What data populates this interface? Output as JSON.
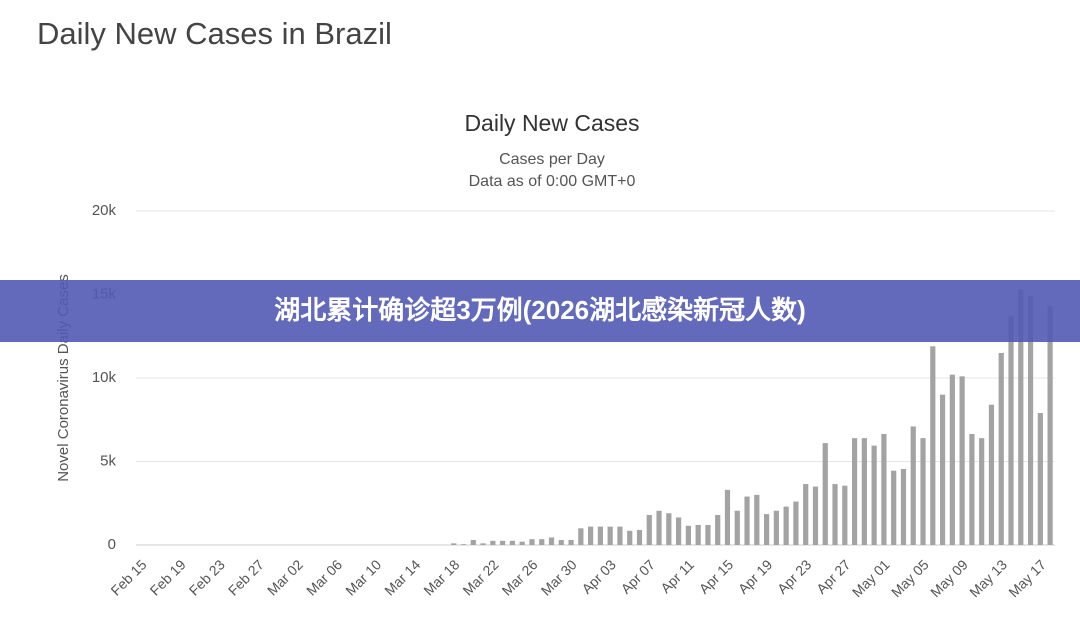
{
  "page_title": "Daily New Cases in Brazil",
  "banner": "湖北累计确诊超3万例(2026湖北感染新冠人数)",
  "chart_data": {
    "type": "bar",
    "title": "Daily New Cases",
    "subtitle": [
      "Cases per Day",
      "Data as of 0:00 GMT+0"
    ],
    "y_label": "Novel Coronavirus Daily Cases",
    "categories": [
      "Feb 15",
      null,
      null,
      null,
      "Feb 19",
      null,
      null,
      null,
      "Feb 23",
      null,
      null,
      null,
      "Feb 27",
      null,
      null,
      null,
      "Mar 02",
      null,
      null,
      null,
      "Mar 06",
      null,
      null,
      null,
      "Mar 10",
      null,
      null,
      null,
      "Mar 14",
      null,
      null,
      null,
      "Mar 18",
      null,
      null,
      null,
      "Mar 22",
      null,
      null,
      null,
      "Mar 26",
      null,
      null,
      null,
      "Mar 30",
      null,
      null,
      null,
      "Apr 03",
      null,
      null,
      null,
      "Apr 07",
      null,
      null,
      null,
      "Apr 11",
      null,
      null,
      null,
      "Apr 15",
      null,
      null,
      null,
      "Apr 19",
      null,
      null,
      null,
      "Apr 23",
      null,
      null,
      null,
      "Apr 27",
      null,
      null,
      null,
      "May 01",
      null,
      null,
      null,
      "May 05",
      null,
      null,
      null,
      "May 09",
      null,
      null,
      null,
      "May 13",
      null,
      null,
      null,
      "May 17",
      null
    ],
    "values": [
      0,
      0,
      0,
      0,
      0,
      0,
      0,
      0,
      0,
      0,
      0,
      0,
      0,
      0,
      0,
      0,
      0,
      0,
      0,
      0,
      0,
      0,
      0,
      0,
      0,
      0,
      0,
      0,
      0,
      0,
      0,
      0,
      100,
      50,
      300,
      100,
      250,
      250,
      250,
      200,
      350,
      350,
      450,
      300,
      300,
      1000,
      1100,
      1100,
      1100,
      1100,
      850,
      900,
      1800,
      2050,
      1900,
      1650,
      1150,
      1200,
      1200,
      1800,
      3300,
      2050,
      2900,
      3000,
      1850,
      2050,
      2300,
      2600,
      3650,
      3500,
      6100,
      3650,
      3550,
      6400,
      6400,
      5950,
      6650,
      4450,
      4550,
      7100,
      6400,
      11900,
      9000,
      10200,
      10100,
      6650,
      6400,
      8400,
      11500,
      13700,
      15300,
      14900,
      7900,
      14300
    ],
    "color": "#a3a3a3",
    "ylim": [
      0,
      20000
    ],
    "yticks": [
      0,
      {
        "value": 5000,
        "label": "5k"
      },
      {
        "value": 10000,
        "label": "10k"
      },
      {
        "value": 15000,
        "label": "15k"
      },
      {
        "value": 20000,
        "label": "20k"
      }
    ],
    "grid": true
  }
}
